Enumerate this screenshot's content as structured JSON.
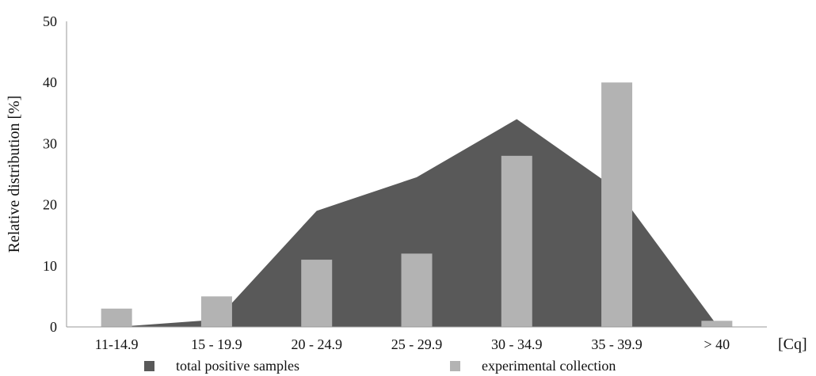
{
  "chart_data": {
    "type": "area+bar",
    "categories": [
      "11-14.9",
      "15 - 19.9",
      "20 - 24.9",
      "25 - 29.9",
      "30 - 34.9",
      "35 - 39.9",
      "> 40"
    ],
    "series": [
      {
        "name": "total positive samples",
        "kind": "area",
        "color": "#595959",
        "values": [
          0,
          1.2,
          19,
          24.5,
          34,
          22.5,
          0.3
        ]
      },
      {
        "name": "experimental collection",
        "kind": "bar",
        "color": "#b3b3b3",
        "values": [
          3,
          5,
          11,
          12,
          28,
          40,
          1
        ]
      }
    ],
    "xlabel": "[Cq]",
    "ylabel": "Relative  distribution  [%]",
    "ylim": [
      0,
      50
    ],
    "yticks": [
      0,
      10,
      20,
      30,
      40,
      50
    ],
    "grid": false,
    "legend_position": "bottom"
  }
}
